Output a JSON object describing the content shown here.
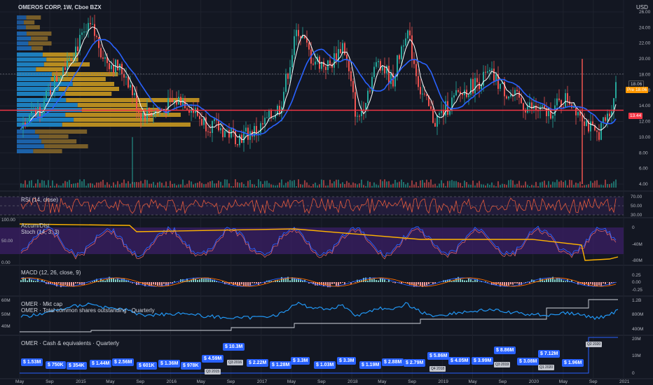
{
  "header": {
    "title": "OMEROS CORP, 1W, Cboe BZX",
    "currency": "USD"
  },
  "price_pane": {
    "y_ticks": [
      "26.00",
      "24.00",
      "22.00",
      "20.00",
      "18.00",
      "16.00",
      "14.00",
      "12.00",
      "10.00",
      "8.00",
      "6.00",
      "4.00"
    ],
    "y_values": [
      26,
      24,
      22,
      20,
      18,
      16,
      14,
      12,
      10,
      8,
      6,
      4
    ],
    "last_price_label": "18.06",
    "pre_label": "Pre",
    "pre_value": "18.06",
    "level_label": "13.44",
    "level_value": 13.44,
    "colors": {
      "up": "#26a69a",
      "down": "#ef5350",
      "ma_fast": "#ffffff",
      "ma_slow": "#2962ff",
      "level": "#f23645",
      "pre": "#ff9800"
    }
  },
  "rsi_pane": {
    "label": "RSI (14, close)",
    "ticks": [
      "70.00",
      "50.00",
      "30.00"
    ]
  },
  "stoch_pane": {
    "label1": "Accum/Dist",
    "label2": "Stoch (14, 3, 3)",
    "left_ticks": [
      "100.00",
      "50.00",
      "0.00"
    ],
    "right_ticks": [
      "0",
      "-40M",
      "-80M"
    ]
  },
  "macd_pane": {
    "label": "MACD (12, 26, close, 9)",
    "ticks": [
      "0.25",
      "0.00",
      "-0.25"
    ]
  },
  "mktcap_pane": {
    "label1": "OMER · Mkt cap",
    "label2": "OMER · Total common shares outstanding · Quarterly",
    "left_ticks": [
      "60M",
      "50M",
      "40M"
    ],
    "right_ticks": [
      "1.2B",
      "800M",
      "400M"
    ]
  },
  "cash_pane": {
    "label": "OMER · Cash & equivalents · Quarterly",
    "right_ticks": [
      "20M",
      "10M",
      "0"
    ],
    "badges": [
      "$ 1.53M",
      "$ 750K",
      "$ 354K",
      "$ 1.44M",
      "$ 2.56M",
      "$ 601K",
      "$ 1.36M",
      "$ 978K",
      "$ 4.59M",
      "$ 10.3M",
      "$ 2.22M",
      "$ 1.28M",
      "$ 3.3M",
      "$ 1.03M",
      "$ 3.3M",
      "$ 1.19M",
      "$ 2.88M",
      "$ 2.79M",
      "$ 5.86M",
      "$ 4.05M",
      "$ 3.99M",
      "$ 8.86M",
      "$ 3.08M",
      "$ 7.12M",
      "$ 1.96M"
    ],
    "quarter_tags": [
      "Q3 2015",
      "Q3 2016",
      "Q4 2018",
      "Q3 2019",
      "Q1 2020",
      "Q2 2020"
    ]
  },
  "x_axis": [
    "May",
    "Sep",
    "2015",
    "May",
    "Sep",
    "2016",
    "May",
    "Sep",
    "2017",
    "May",
    "Sep",
    "2018",
    "May",
    "Sep",
    "2019",
    "May",
    "Sep",
    "2020",
    "May",
    "Sep",
    "2021"
  ]
}
